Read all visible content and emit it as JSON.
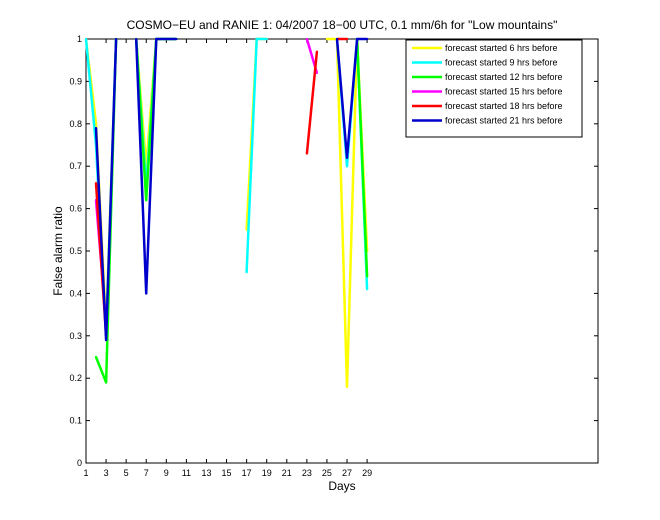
{
  "chart_data": {
    "type": "line",
    "title": "COSMO−EU and RANIE 1: 04/2007 18−00 UTC, 0.1 mm/6h for \"Low mountains\"",
    "xlabel": "Days",
    "ylabel": "False alarm ratio",
    "xlim": [
      1,
      52
    ],
    "ylim": [
      0,
      1
    ],
    "xticks": [
      1,
      3,
      5,
      7,
      9,
      11,
      13,
      15,
      17,
      19,
      21,
      23,
      25,
      27,
      29
    ],
    "yticks": [
      0,
      0.1,
      0.2,
      0.3,
      0.4,
      0.5,
      0.6,
      0.7,
      0.8,
      0.9,
      1
    ],
    "ytick_labels": [
      "0",
      "0.1",
      "0.2",
      "0.3",
      "0.4",
      "0.5",
      "0.6",
      "0.7",
      "0.8",
      "0.9",
      "1"
    ],
    "legend_position": "top-right",
    "series": [
      {
        "name": "forecast started 6 hrs before",
        "color": "#ffff00",
        "x": [
          1,
          2,
          3,
          4,
          null,
          6,
          7,
          8,
          9,
          10,
          null,
          17,
          18,
          19,
          null,
          25,
          26,
          27,
          28,
          29
        ],
        "y": [
          1,
          0.8,
          0.32,
          1,
          null,
          1,
          0.7,
          1,
          1,
          1,
          null,
          0.55,
          1,
          1,
          null,
          1,
          1,
          0.18,
          1,
          0.5
        ]
      },
      {
        "name": "forecast started 9 hrs before",
        "color": "#00ffff",
        "x": [
          1,
          2,
          3,
          4,
          null,
          6,
          7,
          8,
          9,
          10,
          null,
          17,
          18,
          19,
          null,
          26,
          27,
          28,
          29
        ],
        "y": [
          1,
          0.75,
          0.3,
          1,
          null,
          1,
          0.65,
          1,
          1,
          1,
          null,
          0.45,
          1,
          1,
          null,
          1,
          0.7,
          1,
          0.41
        ]
      },
      {
        "name": "forecast started 12 hrs before",
        "color": "#00ff00",
        "x": [
          2,
          3,
          4,
          null,
          6,
          7,
          8,
          9,
          10,
          null,
          28,
          29
        ],
        "y": [
          0.25,
          0.19,
          1,
          null,
          1,
          0.62,
          1,
          1,
          1,
          null,
          1,
          0.44
        ]
      },
      {
        "name": "forecast started 15 hrs before",
        "color": "#ff00ff",
        "x": [
          2,
          3,
          null,
          23,
          24
        ],
        "y": [
          0.62,
          0.33,
          null,
          1,
          0.92
        ]
      },
      {
        "name": "forecast started 18 hrs before",
        "color": "#ff0000",
        "x": [
          2,
          3,
          null,
          23,
          24,
          null,
          26,
          27
        ],
        "y": [
          0.66,
          0.3,
          null,
          0.73,
          0.97,
          null,
          1,
          1
        ]
      },
      {
        "name": "forecast started 21 hrs before",
        "color": "#0000cc",
        "x": [
          2,
          3,
          4,
          null,
          6,
          7,
          8,
          9,
          10,
          null,
          26,
          27,
          28,
          29
        ],
        "y": [
          0.79,
          0.29,
          1,
          null,
          1,
          0.4,
          1,
          1,
          1,
          null,
          1,
          0.72,
          1,
          1
        ]
      }
    ]
  }
}
